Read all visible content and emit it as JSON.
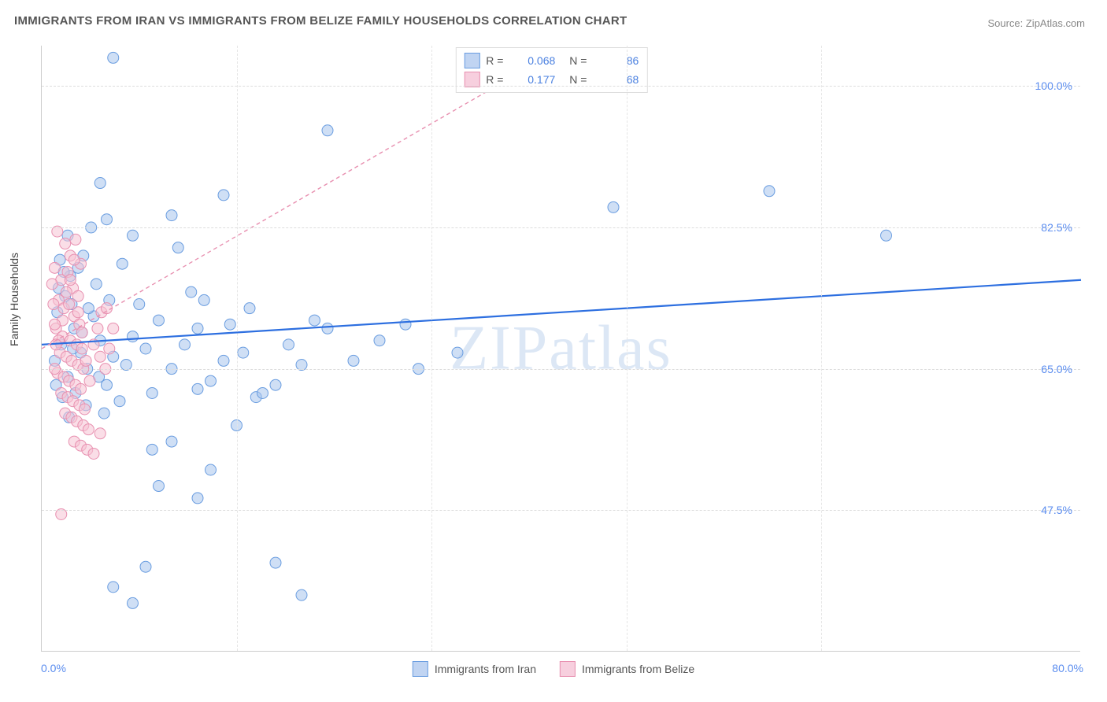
{
  "title": "IMMIGRANTS FROM IRAN VS IMMIGRANTS FROM BELIZE FAMILY HOUSEHOLDS CORRELATION CHART",
  "source": "Source: ZipAtlas.com",
  "ylabel": "Family Households",
  "watermark": "ZIPatlas",
  "chart": {
    "type": "scatter",
    "xlim": [
      0,
      80
    ],
    "ylim": [
      30,
      105
    ],
    "xtick_min_label": "0.0%",
    "xtick_max_label": "80.0%",
    "yticks": [
      {
        "value": 47.5,
        "label": "47.5%"
      },
      {
        "value": 65.0,
        "label": "65.0%"
      },
      {
        "value": 82.5,
        "label": "82.5%"
      },
      {
        "value": 100.0,
        "label": "100.0%"
      }
    ],
    "xgrid_values": [
      15,
      30,
      45,
      60
    ],
    "background_color": "#ffffff",
    "grid_color": "#dddddd",
    "marker_radius": 7,
    "marker_opacity": 0.55,
    "series": [
      {
        "name": "Immigrants from Iran",
        "color_fill": "#a8c5ed",
        "color_stroke": "#6a9de0",
        "trend_color": "#2d6fe0",
        "trend_width": 2.2,
        "trend_dash": "none",
        "trend": {
          "x1": 0,
          "y1": 68.0,
          "x2": 80,
          "y2": 76.0
        },
        "stats": {
          "R": "0.068",
          "N": "86"
        },
        "points": [
          [
            5.5,
            103.5
          ],
          [
            22.0,
            94.5
          ],
          [
            4.5,
            88.0
          ],
          [
            5.0,
            83.5
          ],
          [
            14.0,
            86.5
          ],
          [
            2.0,
            81.5
          ],
          [
            3.8,
            82.5
          ],
          [
            7.0,
            81.5
          ],
          [
            10.0,
            84.0
          ],
          [
            10.5,
            80.0
          ],
          [
            56.0,
            87.0
          ],
          [
            44.0,
            85.0
          ],
          [
            65.0,
            81.5
          ],
          [
            28.0,
            70.5
          ],
          [
            22.0,
            70.0
          ],
          [
            20.0,
            65.5
          ],
          [
            18.0,
            63.0
          ],
          [
            16.5,
            61.5
          ],
          [
            15.5,
            67.0
          ],
          [
            14.0,
            66.0
          ],
          [
            13.0,
            63.5
          ],
          [
            12.0,
            70.0
          ],
          [
            11.0,
            68.0
          ],
          [
            10.0,
            65.0
          ],
          [
            9.0,
            71.0
          ],
          [
            8.5,
            62.0
          ],
          [
            8.0,
            67.5
          ],
          [
            7.5,
            73.0
          ],
          [
            7.0,
            69.0
          ],
          [
            6.5,
            65.5
          ],
          [
            6.0,
            61.0
          ],
          [
            5.5,
            66.5
          ],
          [
            5.0,
            63.0
          ],
          [
            4.5,
            68.5
          ],
          [
            4.0,
            71.5
          ],
          [
            3.5,
            65.0
          ],
          [
            3.0,
            67.0
          ],
          [
            2.5,
            70.0
          ],
          [
            2.0,
            64.0
          ],
          [
            1.5,
            68.0
          ],
          [
            1.0,
            66.0
          ],
          [
            1.2,
            72.0
          ],
          [
            1.8,
            74.0
          ],
          [
            2.2,
            76.5
          ],
          [
            2.8,
            77.5
          ],
          [
            3.2,
            79.0
          ],
          [
            4.2,
            75.5
          ],
          [
            5.2,
            73.5
          ],
          [
            6.2,
            78.0
          ],
          [
            12.5,
            73.5
          ],
          [
            10.0,
            56.0
          ],
          [
            8.5,
            55.0
          ],
          [
            13.0,
            52.5
          ],
          [
            12.0,
            49.0
          ],
          [
            9.0,
            50.5
          ],
          [
            5.5,
            38.0
          ],
          [
            20.0,
            37.0
          ],
          [
            7.0,
            36.0
          ],
          [
            18.0,
            41.0
          ],
          [
            8.0,
            40.5
          ],
          [
            24.0,
            66.0
          ],
          [
            26.0,
            68.5
          ],
          [
            29.0,
            65.0
          ],
          [
            32.0,
            67.0
          ],
          [
            15.0,
            58.0
          ],
          [
            17.0,
            62.0
          ],
          [
            19.0,
            68.0
          ],
          [
            21.0,
            71.0
          ],
          [
            1.4,
            78.5
          ],
          [
            2.6,
            62.0
          ],
          [
            3.4,
            60.5
          ],
          [
            4.8,
            59.5
          ],
          [
            1.1,
            63.0
          ],
          [
            1.6,
            61.5
          ],
          [
            2.1,
            59.0
          ],
          [
            11.5,
            74.5
          ],
          [
            1.3,
            75.0
          ],
          [
            1.7,
            77.0
          ],
          [
            2.3,
            73.0
          ],
          [
            3.6,
            72.5
          ],
          [
            12.0,
            62.5
          ],
          [
            14.5,
            70.5
          ],
          [
            16.0,
            72.5
          ],
          [
            2.4,
            67.5
          ],
          [
            3.1,
            69.5
          ],
          [
            4.4,
            64.0
          ]
        ]
      },
      {
        "name": "Immigrants from Belize",
        "color_fill": "#f5c2d3",
        "color_stroke": "#e890b0",
        "trend_color": "#e890b0",
        "trend_width": 1.4,
        "trend_dash": "5,4",
        "trend": {
          "x1": 0,
          "y1": 67.5,
          "x2": 35,
          "y2": 100.0
        },
        "stats": {
          "R": "0.177",
          "N": "68"
        },
        "points": [
          [
            1.2,
            82.0
          ],
          [
            1.8,
            80.5
          ],
          [
            2.2,
            79.0
          ],
          [
            2.6,
            81.0
          ],
          [
            3.0,
            78.0
          ],
          [
            1.0,
            77.5
          ],
          [
            1.5,
            76.0
          ],
          [
            2.0,
            77.0
          ],
          [
            2.4,
            75.0
          ],
          [
            2.8,
            74.0
          ],
          [
            1.3,
            73.5
          ],
          [
            1.7,
            72.5
          ],
          [
            2.1,
            73.0
          ],
          [
            2.5,
            71.5
          ],
          [
            2.9,
            70.5
          ],
          [
            1.1,
            70.0
          ],
          [
            1.6,
            69.0
          ],
          [
            2.2,
            68.5
          ],
          [
            2.7,
            68.0
          ],
          [
            3.1,
            67.5
          ],
          [
            1.4,
            67.0
          ],
          [
            1.9,
            66.5
          ],
          [
            2.3,
            66.0
          ],
          [
            2.8,
            65.5
          ],
          [
            3.2,
            65.0
          ],
          [
            1.2,
            64.5
          ],
          [
            1.7,
            64.0
          ],
          [
            2.1,
            63.5
          ],
          [
            2.6,
            63.0
          ],
          [
            3.0,
            62.5
          ],
          [
            1.5,
            62.0
          ],
          [
            2.0,
            61.5
          ],
          [
            2.4,
            61.0
          ],
          [
            2.9,
            60.5
          ],
          [
            3.3,
            60.0
          ],
          [
            1.8,
            59.5
          ],
          [
            2.3,
            59.0
          ],
          [
            2.7,
            58.5
          ],
          [
            3.2,
            58.0
          ],
          [
            3.6,
            57.5
          ],
          [
            2.5,
            56.0
          ],
          [
            3.0,
            55.5
          ],
          [
            3.5,
            55.0
          ],
          [
            4.0,
            54.5
          ],
          [
            4.5,
            57.0
          ],
          [
            1.0,
            65.0
          ],
          [
            1.3,
            68.5
          ],
          [
            1.6,
            71.0
          ],
          [
            1.9,
            74.5
          ],
          [
            2.2,
            76.0
          ],
          [
            2.5,
            78.5
          ],
          [
            2.8,
            72.0
          ],
          [
            3.1,
            69.5
          ],
          [
            3.4,
            66.0
          ],
          [
            3.7,
            63.5
          ],
          [
            4.0,
            68.0
          ],
          [
            4.3,
            70.0
          ],
          [
            4.6,
            72.0
          ],
          [
            4.9,
            65.0
          ],
          [
            5.2,
            67.5
          ],
          [
            0.8,
            75.5
          ],
          [
            0.9,
            73.0
          ],
          [
            1.0,
            70.5
          ],
          [
            1.1,
            68.0
          ],
          [
            4.5,
            66.5
          ],
          [
            5.0,
            72.5
          ],
          [
            5.5,
            70.0
          ],
          [
            1.5,
            47.0
          ]
        ]
      }
    ]
  },
  "legend": {
    "series1_label": "Immigrants from Iran",
    "series2_label": "Immigrants from Belize"
  }
}
